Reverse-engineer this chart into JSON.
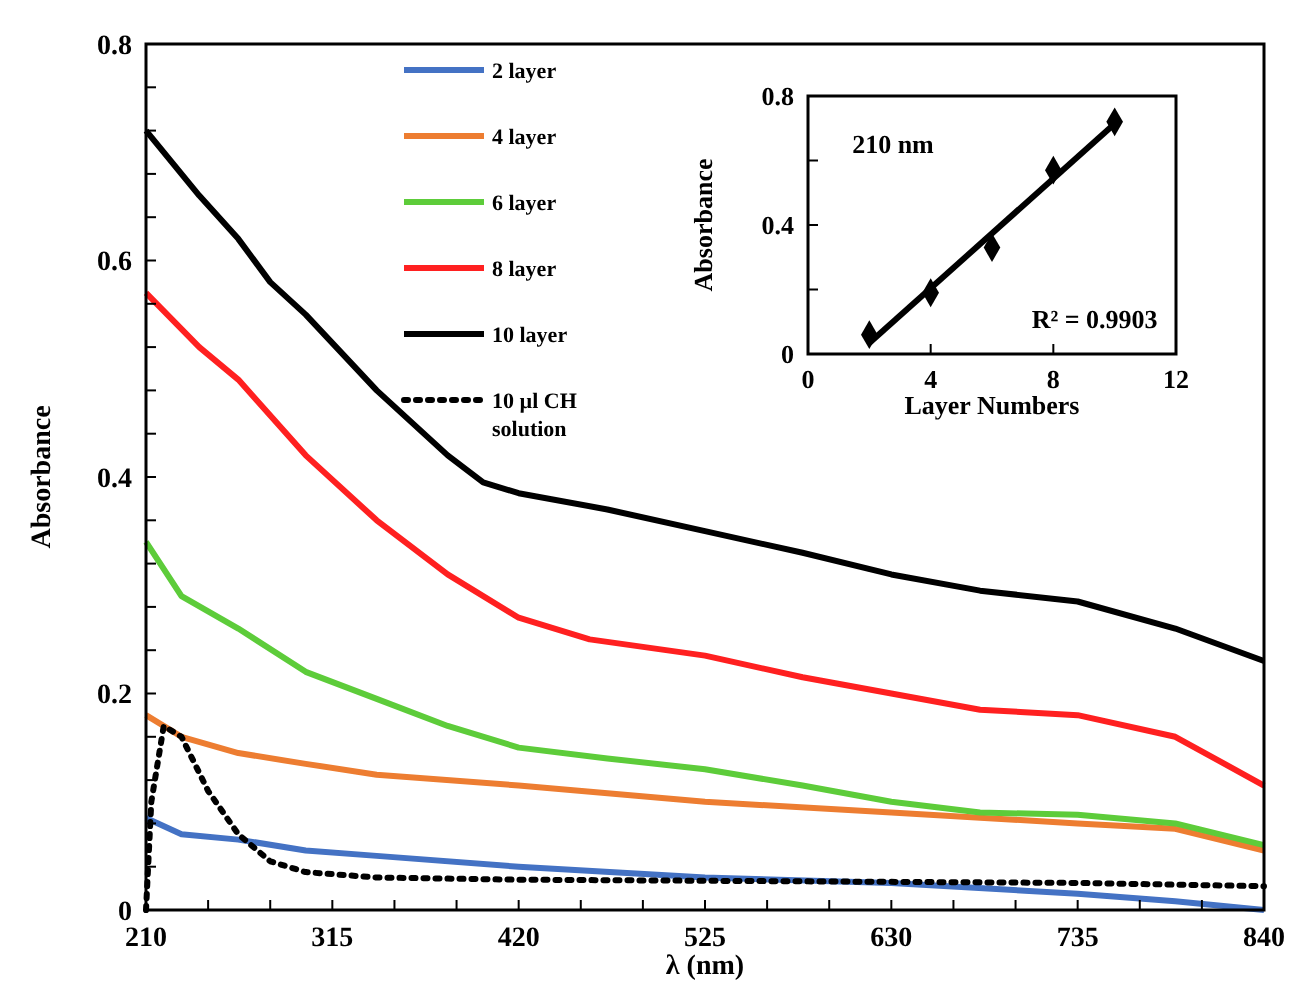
{
  "chart_data": [
    {
      "type": "line",
      "xlabel": "λ (nm)",
      "ylabel": "Absorbance",
      "xlim": [
        210,
        840
      ],
      "ylim": [
        0,
        0.8
      ],
      "xticks": [
        210,
        {
          "value": 245,
          "label": null
        },
        {
          "value": 280,
          "label": null
        },
        315,
        {
          "value": 350,
          "label": null
        },
        {
          "value": 385,
          "label": null
        },
        420,
        {
          "value": 455,
          "label": null
        },
        {
          "value": 490,
          "label": null
        },
        525,
        {
          "value": 560,
          "label": null
        },
        {
          "value": 595,
          "label": null
        },
        630,
        {
          "value": 665,
          "label": null
        },
        {
          "value": 700,
          "label": null
        },
        735,
        {
          "value": 770,
          "label": null
        },
        {
          "value": 805,
          "label": null
        },
        840
      ],
      "yticks": [
        0,
        {
          "value": 0.04,
          "label": null
        },
        {
          "value": 0.08,
          "label": null
        },
        {
          "value": 0.12,
          "label": null
        },
        {
          "value": 0.16,
          "label": null
        },
        0.2,
        {
          "value": 0.24,
          "label": null
        },
        {
          "value": 0.28,
          "label": null
        },
        {
          "value": 0.32,
          "label": null
        },
        {
          "value": 0.36,
          "label": null
        },
        0.4,
        {
          "value": 0.44,
          "label": null
        },
        {
          "value": 0.48,
          "label": null
        },
        {
          "value": 0.52,
          "label": null
        },
        {
          "value": 0.56,
          "label": null
        },
        0.6,
        {
          "value": 0.64,
          "label": null
        },
        {
          "value": 0.68,
          "label": null
        },
        {
          "value": 0.72,
          "label": null
        },
        {
          "value": 0.76,
          "label": null
        },
        0.8
      ],
      "grid": false,
      "legend": "top",
      "series": [
        {
          "name": "2 layer",
          "color": "#4472c4",
          "x": [
            210,
            230,
            262,
            300,
            340,
            420,
            525,
            630,
            735,
            790,
            840
          ],
          "values": [
            0.085,
            0.07,
            0.065,
            0.055,
            0.05,
            0.04,
            0.03,
            0.025,
            0.015,
            0.008,
            0
          ]
        },
        {
          "name": "4 layer",
          "color": "#ed7d31",
          "x": [
            210,
            230,
            262,
            300,
            340,
            420,
            525,
            630,
            735,
            790,
            840
          ],
          "values": [
            0.18,
            0.16,
            0.145,
            0.135,
            0.125,
            0.115,
            0.1,
            0.09,
            0.08,
            0.075,
            0.055
          ]
        },
        {
          "name": "6 layer",
          "color": "#5dcc3a",
          "x": [
            210,
            230,
            262,
            300,
            340,
            380,
            420,
            470,
            525,
            580,
            630,
            680,
            735,
            790,
            840
          ],
          "values": [
            0.34,
            0.29,
            0.26,
            0.22,
            0.195,
            0.17,
            0.15,
            0.14,
            0.13,
            0.115,
            0.1,
            0.09,
            0.088,
            0.08,
            0.06
          ]
        },
        {
          "name": "8 layer",
          "color": "#ff2020",
          "x": [
            210,
            240,
            262,
            300,
            340,
            380,
            420,
            460,
            525,
            580,
            630,
            680,
            735,
            790,
            840
          ],
          "values": [
            0.57,
            0.52,
            0.49,
            0.42,
            0.36,
            0.31,
            0.27,
            0.25,
            0.235,
            0.215,
            0.2,
            0.185,
            0.18,
            0.16,
            0.115
          ]
        },
        {
          "name": "10 layer",
          "color": "#000000",
          "x": [
            210,
            225,
            240,
            262,
            280,
            300,
            340,
            380,
            400,
            420,
            470,
            525,
            580,
            630,
            680,
            735,
            790,
            840
          ],
          "values": [
            0.72,
            0.69,
            0.66,
            0.62,
            0.58,
            0.55,
            0.48,
            0.42,
            0.395,
            0.385,
            0.37,
            0.35,
            0.33,
            0.31,
            0.295,
            0.285,
            0.26,
            0.23
          ]
        },
        {
          "name": "10 µl CH solution",
          "color": "#000000",
          "line_style": "dotted",
          "x": [
            210,
            213,
            220,
            230,
            245,
            262,
            280,
            300,
            340,
            420,
            525,
            630,
            735,
            840
          ],
          "values": [
            0,
            0.1,
            0.17,
            0.16,
            0.11,
            0.07,
            0.045,
            0.035,
            0.03,
            0.028,
            0.027,
            0.026,
            0.025,
            0.022
          ]
        }
      ]
    },
    {
      "type": "scatter",
      "xlabel": "Layer Numbers",
      "ylabel": "Absorbance",
      "xlim": [
        0,
        12
      ],
      "ylim": [
        0,
        0.8
      ],
      "xticks": [
        0,
        4,
        8,
        12
      ],
      "yticks": [
        0,
        {
          "value": 0.2,
          "label": null
        },
        0.4,
        {
          "value": 0.6,
          "label": null
        },
        0.8
      ],
      "grid": false,
      "legend": false,
      "marker": "diamond",
      "annotations": [
        "210 nm",
        "R² = 0.9903"
      ],
      "series": [
        {
          "color": "#000000",
          "x": [
            2,
            4,
            6,
            8,
            10
          ],
          "values": [
            0.06,
            0.19,
            0.33,
            0.57,
            0.72
          ]
        },
        {
          "type": "line",
          "color": "#000000",
          "marker": "none",
          "x": [
            2,
            10
          ],
          "values": [
            0.034,
            0.714
          ]
        }
      ]
    }
  ]
}
